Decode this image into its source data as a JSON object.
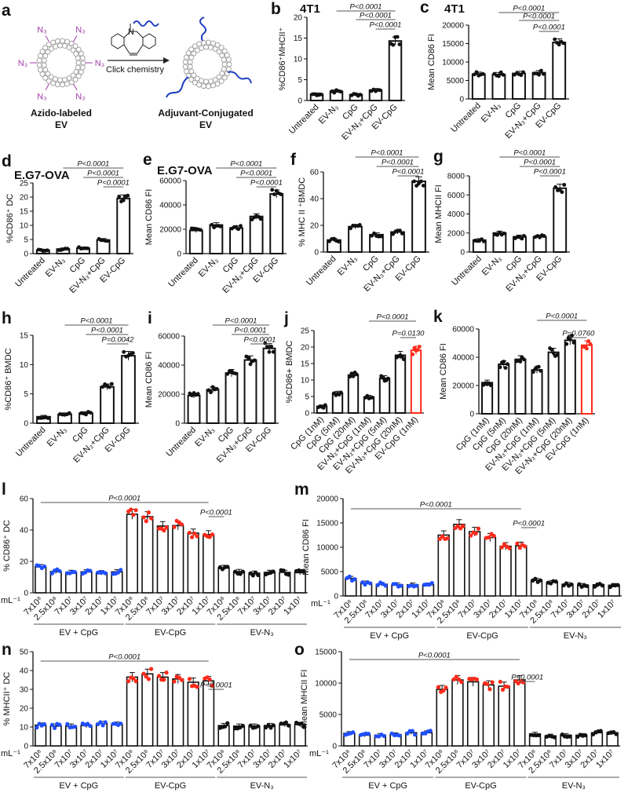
{
  "colors": {
    "blue": "#1f4fff",
    "red": "#ff2a1a",
    "black": "#111111",
    "n3": "#a03aa8",
    "ev_ring": "#9a9a9a"
  },
  "diagram": {
    "letter": "a",
    "n3_label": "N₃",
    "reaction_label": "Click chemistry",
    "nitrogen": "N",
    "left_caption_1": "Azido-labeled",
    "left_caption_2": "EV",
    "right_caption_1": "Adjuvant-Conjugated",
    "right_caption_2": "EV"
  },
  "chart_data": [
    {
      "id": "b",
      "letter": "b",
      "type": "bar",
      "title": "4T1",
      "ylabel": "%CD86⁺MHCII⁺",
      "categories": [
        "Untreated",
        "EV-N₃",
        "CpG",
        "EV-N₃+CpG",
        "EV-CpG"
      ],
      "values": [
        1.5,
        2.2,
        1.4,
        2.5,
        14.3
      ],
      "ylim": [
        0,
        20
      ],
      "yticks": [
        0,
        5,
        10,
        15,
        20
      ],
      "brackets": [
        {
          "from": 1,
          "to": 4,
          "label": "P<0.0001"
        },
        {
          "from": 2,
          "to": 4,
          "label": "P<0.0001"
        },
        {
          "from": 3,
          "to": 4,
          "label": "P<0.0001"
        }
      ]
    },
    {
      "id": "c",
      "letter": "c",
      "type": "bar",
      "title": "4T1",
      "ylabel": "Mean CD86 FI",
      "categories": [
        "Untreated",
        "EV-N₃",
        "CpG",
        "EV-N₃+CpG",
        "EV-CpG"
      ],
      "values": [
        6700,
        6600,
        6900,
        7100,
        15300
      ],
      "ylim": [
        0,
        20000
      ],
      "yticks": [
        0,
        5000,
        10000,
        15000,
        20000
      ],
      "brackets": [
        {
          "from": 1,
          "to": 4,
          "label": "P<0.0001"
        },
        {
          "from": 2,
          "to": 4,
          "label": "P<0.0001"
        },
        {
          "from": 3,
          "to": 4,
          "label": "P<0.0001"
        }
      ]
    },
    {
      "id": "d",
      "letter": "d",
      "type": "bar",
      "title": "E.G7-OVA",
      "ylabel": "%CD86⁺ DC",
      "categories": [
        "Untreated",
        "EV-N₃",
        "CpG",
        "EV-N₃+CpG",
        "EV-CpG"
      ],
      "values": [
        1.2,
        1.6,
        1.9,
        4.8,
        19.5
      ],
      "ylim": [
        0,
        25
      ],
      "yticks": [
        0,
        5,
        10,
        15,
        20,
        25
      ],
      "brackets": [
        {
          "from": 1,
          "to": 4,
          "label": "P<0.0001"
        },
        {
          "from": 2,
          "to": 4,
          "label": "P<0.0001"
        },
        {
          "from": 3,
          "to": 4,
          "label": "P<0.0001"
        }
      ]
    },
    {
      "id": "e",
      "letter": "e",
      "type": "bar",
      "title": "E.G7-OVA",
      "ylabel": "Mean CD86 FI",
      "categories": [
        "Untreated",
        "EV-N₃",
        "CpG",
        "EV-N₃+CpG",
        "EV-CpG"
      ],
      "values": [
        19000,
        23500,
        21000,
        30500,
        49000
      ],
      "ylim": [
        0,
        60000
      ],
      "yticks": [
        0,
        20000,
        40000,
        60000
      ],
      "brackets": [
        {
          "from": 1,
          "to": 4,
          "label": "P<0.0001"
        },
        {
          "from": 2,
          "to": 4,
          "label": "P<0.0001"
        },
        {
          "from": 3,
          "to": 4,
          "label": "P<0.0001"
        }
      ]
    },
    {
      "id": "f",
      "letter": "f",
      "type": "bar",
      "title": "",
      "ylabel": "% MHC II ⁺BMDC",
      "categories": [
        "Untreated",
        "EV-N₃",
        "CpG",
        "EV-N₃+CpG",
        "EV-CpG"
      ],
      "values": [
        9,
        19,
        13,
        15,
        53
      ],
      "ylim": [
        0,
        60
      ],
      "yticks": [
        0,
        20,
        40,
        60
      ],
      "brackets": [
        {
          "from": 1,
          "to": 4,
          "label": "P<0.0001"
        },
        {
          "from": 2,
          "to": 4,
          "label": "P<0.0001"
        },
        {
          "from": 3,
          "to": 4,
          "label": "P<0.0001"
        }
      ]
    },
    {
      "id": "g",
      "letter": "g",
      "type": "bar",
      "title": "",
      "ylabel": "Mean MHCII FI",
      "categories": [
        "Untreated",
        "EV-N₃",
        "CpG",
        "EV-N₃+CpG",
        "EV-CpG"
      ],
      "values": [
        1250,
        2000,
        1600,
        1600,
        6700
      ],
      "ylim": [
        0,
        8000
      ],
      "yticks": [
        0,
        2000,
        4000,
        6000,
        8000
      ],
      "brackets": [
        {
          "from": 1,
          "to": 4,
          "label": "P<0.0001"
        },
        {
          "from": 2,
          "to": 4,
          "label": "P<0.0001"
        },
        {
          "from": 3,
          "to": 4,
          "label": "P<0.0001"
        }
      ]
    },
    {
      "id": "h",
      "letter": "h",
      "type": "bar",
      "title": "",
      "ylabel": "%CD86⁺ BMDC",
      "categories": [
        "Untreated",
        "EV-N₃",
        "CpG",
        "EV-N₃+CpG",
        "EV-CpG"
      ],
      "values": [
        1.1,
        1.5,
        1.7,
        6.2,
        11.5
      ],
      "ylim": [
        0,
        15
      ],
      "yticks": [
        0,
        5,
        10,
        15
      ],
      "brackets": [
        {
          "from": 1,
          "to": 4,
          "label": "P<0.0001"
        },
        {
          "from": 2,
          "to": 4,
          "label": "P<0.0001"
        },
        {
          "from": 3,
          "to": 4,
          "label": "P=0.0042"
        }
      ]
    },
    {
      "id": "i",
      "letter": "i",
      "type": "bar",
      "title": "",
      "ylabel": "Mean CD86 FI",
      "categories": [
        "Untreated",
        "EV-N₃",
        "CpG",
        "EV-N₃+CpG",
        "EV-CpG"
      ],
      "values": [
        19000,
        23000,
        34500,
        43500,
        51500
      ],
      "ylim": [
        0,
        60000
      ],
      "yticks": [
        0,
        20000,
        40000,
        60000
      ],
      "brackets": [
        {
          "from": 1,
          "to": 4,
          "label": "P<0.0001"
        },
        {
          "from": 2,
          "to": 4,
          "label": "P<0.0001"
        },
        {
          "from": 3,
          "to": 4,
          "label": "P<0.0001"
        }
      ]
    },
    {
      "id": "j",
      "letter": "j",
      "type": "bar",
      "title": "",
      "ylabel": "%CD86+ BMDC",
      "categories": [
        "CpG (1nM)",
        "CpG (5nM)",
        "CpG (20nM)",
        "EV-N₃+CpG (1nM)",
        "EV-N₃+CpG (5nM)",
        "EV-N₃+CpG (20nM)",
        "EV-CpG (1nM)"
      ],
      "values": [
        2,
        6,
        11.5,
        4.8,
        10.5,
        17.5,
        19
      ],
      "highlight_last": true,
      "ylim": [
        0,
        25
      ],
      "yticks": [
        0,
        5,
        10,
        15,
        20,
        25
      ],
      "brackets": [
        {
          "from": 3,
          "to": 6,
          "label": "P<0.0001"
        },
        {
          "from": 5,
          "to": 6,
          "label": "P=0.0130"
        }
      ]
    },
    {
      "id": "k",
      "letter": "k",
      "type": "bar",
      "title": "",
      "ylabel": "Mean CD86 FI",
      "categories": [
        "CpG (1nM)",
        "CpG (5nM)",
        "CpG (20nM)",
        "EV-N₃+CpG (1nM)",
        "EV-N₃+CpG (5nM)",
        "EV-N₃+CpG (20nM)",
        "EV-CpG (1nM)"
      ],
      "values": [
        22000,
        35000,
        38500,
        31000,
        43500,
        52000,
        48500
      ],
      "highlight_last": true,
      "ylim": [
        0,
        60000
      ],
      "yticks": [
        0,
        20000,
        40000,
        60000
      ],
      "brackets": [
        {
          "from": 3,
          "to": 6,
          "label": "P<0.0001"
        },
        {
          "from": 5,
          "to": 6,
          "label": "P=0.0760"
        }
      ]
    },
    {
      "id": "l",
      "letter": "l",
      "type": "bar",
      "ylabel": "% CD86⁺ DC",
      "unit_label": "mL⁻¹",
      "x_labels": [
        "7x10⁸",
        "2.5x10⁸",
        "7x10⁷",
        "3x10⁷",
        "2x10⁷",
        "1x10⁷"
      ],
      "series": [
        {
          "name": "EV + CpG",
          "color": "blue",
          "values": [
            16.5,
            13.5,
            13,
            13.3,
            12.8,
            13.3
          ]
        },
        {
          "name": "EV-CpG",
          "color": "red",
          "values": [
            50,
            48.5,
            42.5,
            42.8,
            38,
            37
          ]
        },
        {
          "name": "EV-N₃",
          "color": "black",
          "values": [
            16,
            13.5,
            12.5,
            13,
            13,
            12.8
          ]
        }
      ],
      "ylim": [
        0,
        60
      ],
      "yticks": [
        0,
        20,
        40,
        60
      ],
      "brackets": [
        {
          "from": 0,
          "to": 11,
          "label": "P<0.0001"
        },
        {
          "from": 11,
          "to": 12,
          "label": "P<0.0001"
        }
      ]
    },
    {
      "id": "m",
      "letter": "m",
      "type": "bar",
      "ylabel": "Mean CD86 FI",
      "unit_label": "mL⁻¹",
      "x_labels": [
        "7x10⁸",
        "2.5x10⁸",
        "7x10⁷",
        "3x10⁷",
        "2x10⁷",
        "1x10⁷"
      ],
      "series": [
        {
          "name": "EV + CpG",
          "color": "blue",
          "values": [
            3600,
            2700,
            2400,
            2300,
            2300,
            2300
          ]
        },
        {
          "name": "EV-CpG",
          "color": "red",
          "values": [
            12500,
            14700,
            13200,
            12000,
            10200,
            10300
          ]
        },
        {
          "name": "EV-N₃",
          "color": "black",
          "values": [
            3200,
            2800,
            2400,
            2200,
            2300,
            2200
          ]
        }
      ],
      "ylim": [
        0,
        20000
      ],
      "yticks": [
        0,
        5000,
        10000,
        15000,
        20000
      ],
      "brackets": [
        {
          "from": 0,
          "to": 11,
          "label": "P<0.0001"
        },
        {
          "from": 11,
          "to": 12,
          "label": "P<0.0001"
        }
      ]
    },
    {
      "id": "n",
      "letter": "n",
      "type": "bar",
      "ylabel": "% MHCII⁺ DC",
      "unit_label": "mL⁻¹",
      "x_labels": [
        "7x10⁸",
        "2.5x10⁸",
        "7x10⁷",
        "3x10⁷",
        "2x10⁷",
        "1x10⁷"
      ],
      "series": [
        {
          "name": "EV + CpG",
          "color": "blue",
          "values": [
            11,
            10.5,
            10.5,
            10.8,
            11.8,
            11.5
          ]
        },
        {
          "name": "EV-CpG",
          "color": "red",
          "values": [
            36.5,
            38.2,
            36.5,
            35.5,
            33.8,
            34.5
          ]
        },
        {
          "name": "EV-N₃",
          "color": "black",
          "values": [
            10.8,
            10.5,
            10.5,
            10.8,
            11.3,
            11.3
          ]
        }
      ],
      "ylim": [
        0,
        50
      ],
      "yticks": [
        0,
        10,
        20,
        30,
        40,
        50
      ],
      "brackets": [
        {
          "from": 0,
          "to": 11,
          "label": "P<0.0001"
        },
        {
          "from": 11,
          "to": 12,
          "label": "P<0.0001"
        }
      ]
    },
    {
      "id": "o",
      "letter": "o",
      "type": "bar",
      "ylabel": "Mean MHCII FI",
      "unit_label": "mL⁻¹",
      "x_labels": [
        "7x10⁸",
        "2.5x10⁸",
        "7x10⁷",
        "3x10⁷",
        "2x10⁷",
        "1x10⁷"
      ],
      "series": [
        {
          "name": "EV + CpG",
          "color": "blue",
          "values": [
            2000,
            1700,
            1700,
            1800,
            2100,
            2100
          ]
        },
        {
          "name": "EV-CpG",
          "color": "red",
          "values": [
            9000,
            10500,
            10200,
            9700,
            9500,
            10500
          ]
        },
        {
          "name": "EV-N₃",
          "color": "black",
          "values": [
            1900,
            1600,
            1700,
            1700,
            2100,
            2100
          ]
        }
      ],
      "ylim": [
        0,
        15000
      ],
      "yticks": [
        0,
        5000,
        10000,
        15000
      ],
      "brackets": [
        {
          "from": 0,
          "to": 11,
          "label": "P<0.0001"
        },
        {
          "from": 11,
          "to": 12,
          "label": "P<0.0001"
        }
      ]
    }
  ]
}
